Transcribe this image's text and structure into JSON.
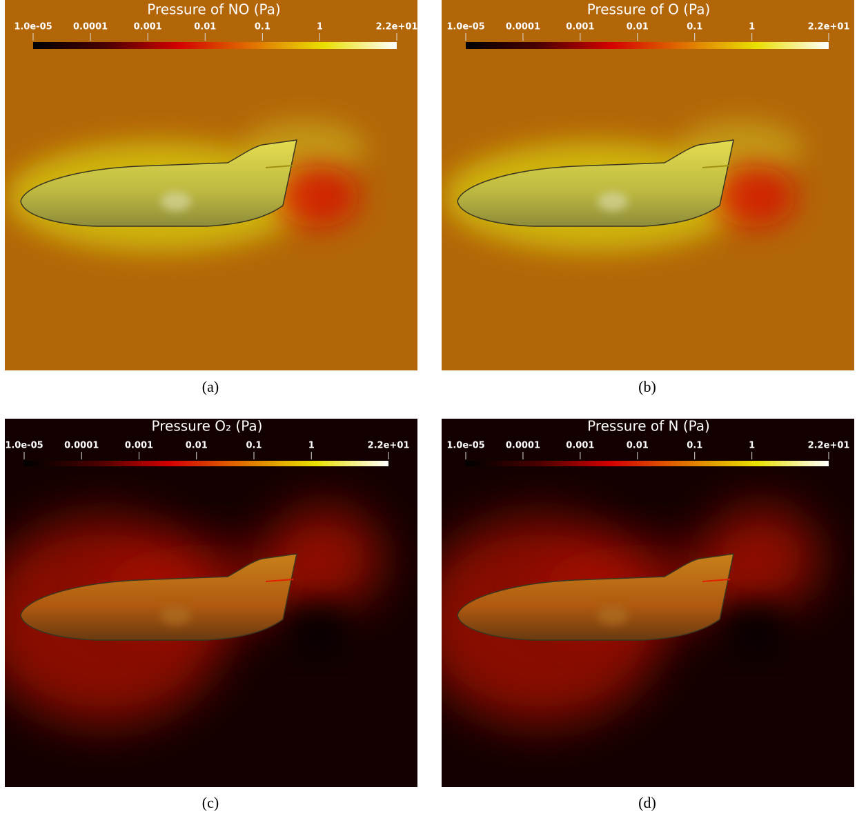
{
  "panels": [
    {
      "title": "Pressure of NO (Pa)",
      "caption": "(a)",
      "background": "#b36608",
      "colorbar": {
        "log": true,
        "range": [
          1e-05,
          22
        ],
        "ticks": [
          {
            "value": 1e-05,
            "label": "1.0e-05"
          },
          0.0001,
          0.001,
          0.01,
          0.1,
          1,
          {
            "value": 22,
            "label": "2.2e+01"
          }
        ]
      }
    },
    {
      "title": "Pressure of O (Pa)",
      "caption": "(b)",
      "background": "#b36608",
      "colorbar": {
        "log": true,
        "range": [
          1e-05,
          22
        ],
        "ticks": [
          {
            "value": 1e-05,
            "label": "1.0e-05"
          },
          0.0001,
          0.001,
          0.01,
          0.1,
          1,
          {
            "value": 22,
            "label": "2.2e+01"
          }
        ]
      }
    },
    {
      "title": "Pressure O₂ (Pa)",
      "caption": "(c)",
      "background": "#130000",
      "colorbar": {
        "log": true,
        "range": [
          1e-05,
          22
        ],
        "ticks": [
          {
            "value": 1e-05,
            "label": "1.0e-05"
          },
          0.0001,
          0.001,
          0.01,
          0.1,
          1,
          {
            "value": 22,
            "label": "2.2e+01"
          }
        ]
      }
    },
    {
      "title": "Pressure of N (Pa)",
      "caption": "(d)",
      "background": "#130000",
      "colorbar": {
        "log": true,
        "range": [
          1e-05,
          22
        ],
        "ticks": [
          {
            "value": 1e-05,
            "label": "1.0e-05"
          },
          0.0001,
          0.001,
          0.01,
          0.1,
          1,
          {
            "value": 22,
            "label": "2.2e+01"
          }
        ]
      }
    }
  ]
}
